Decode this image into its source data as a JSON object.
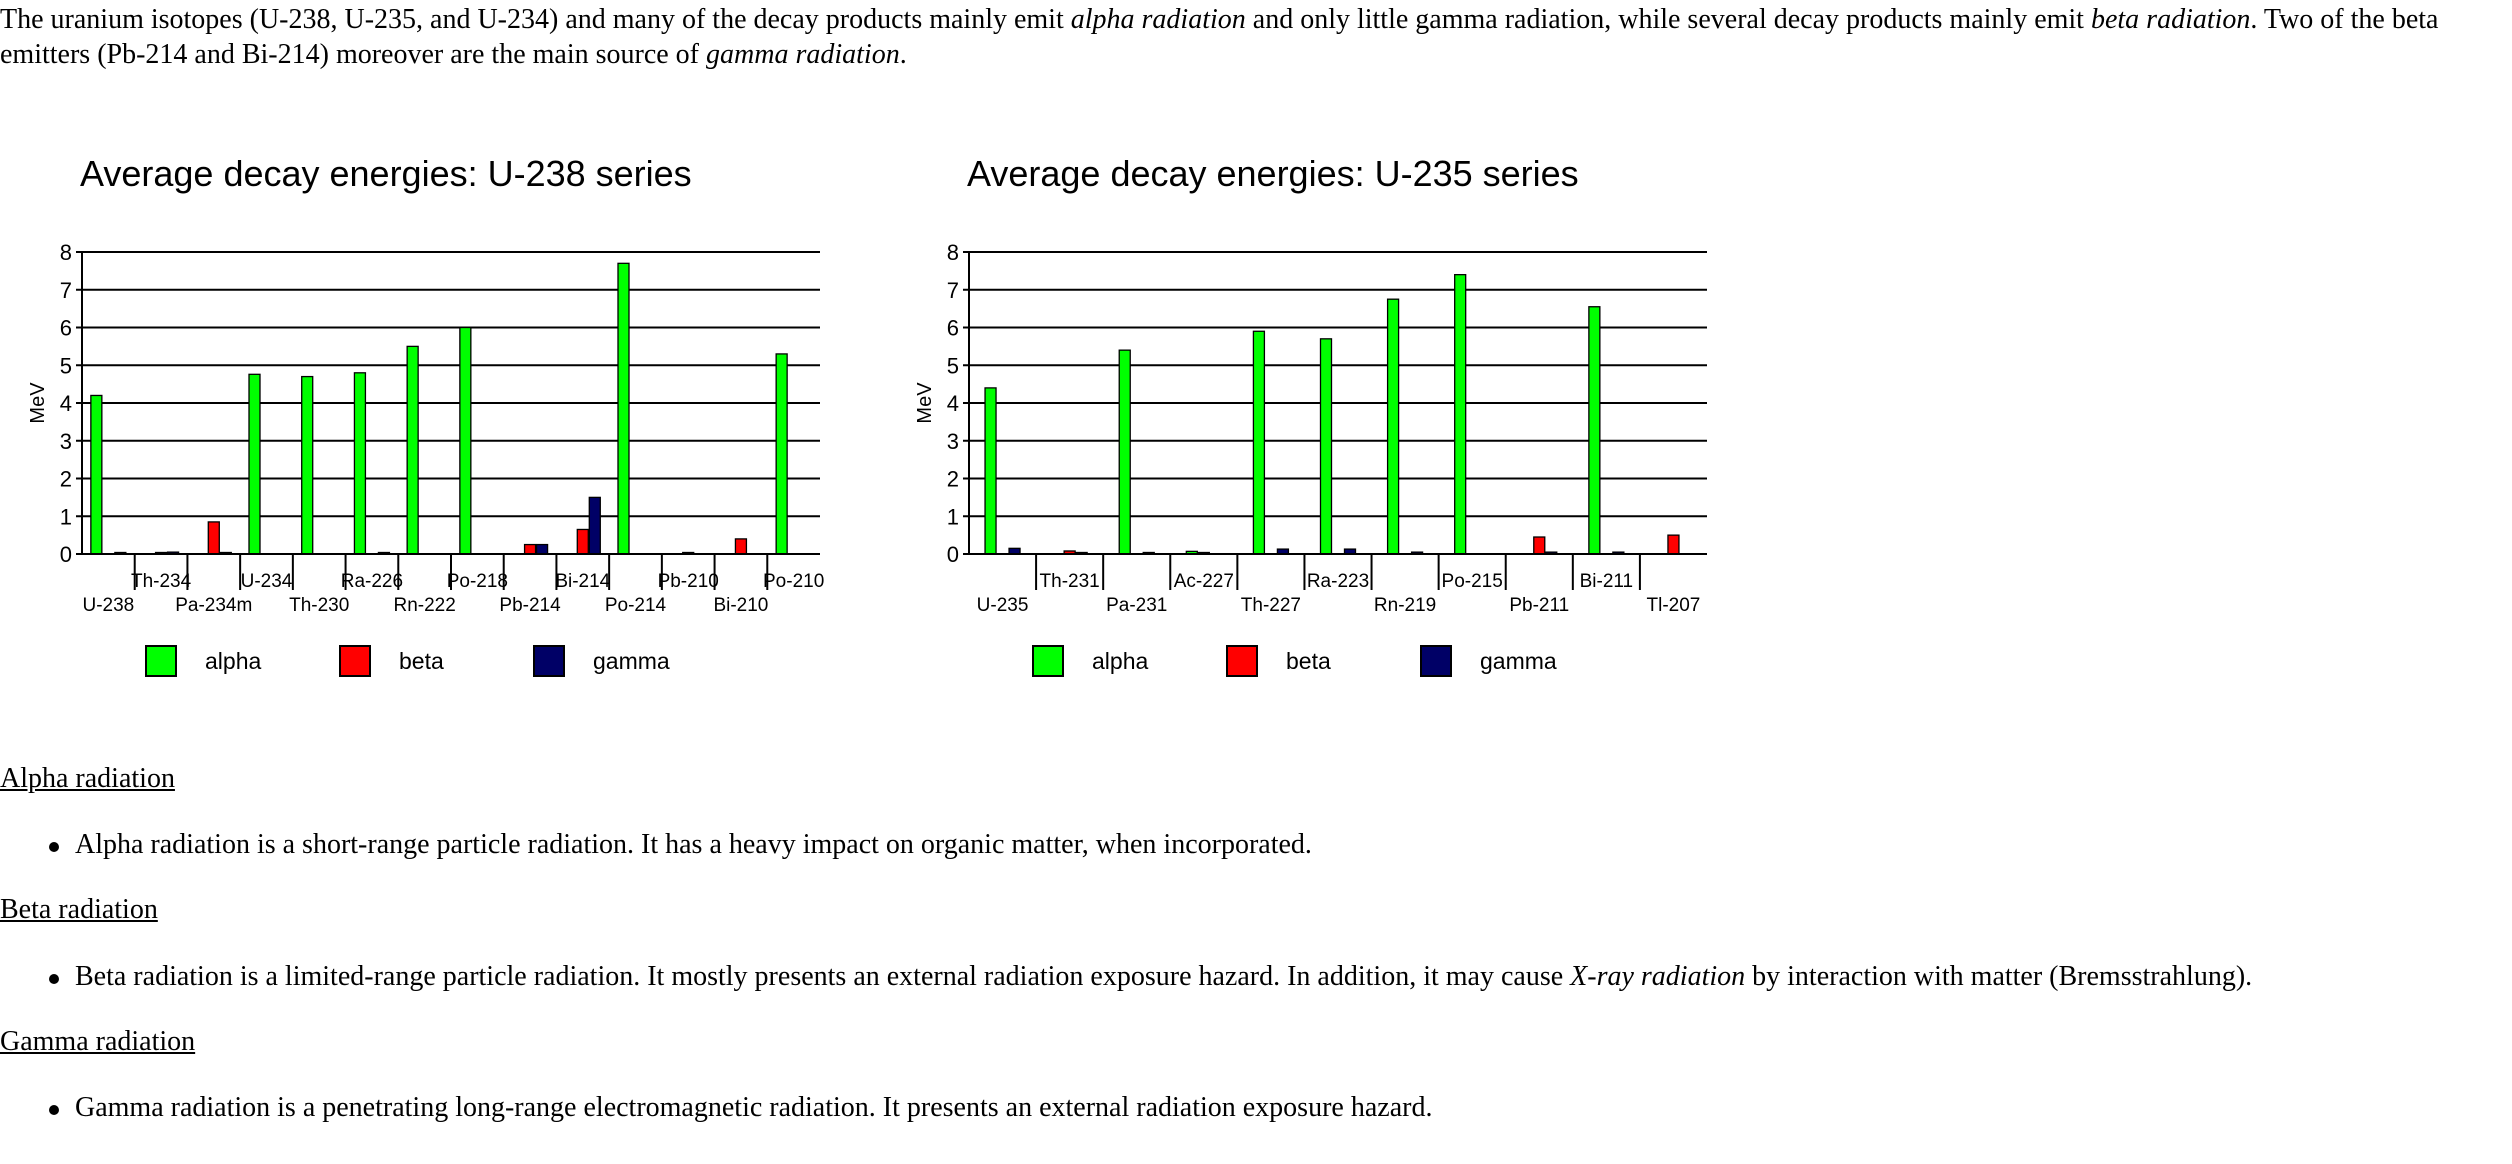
{
  "intro": {
    "t1": "The uranium isotopes (U-238, U-235, and U-234) and many of the decay products mainly emit ",
    "e1": "alpha radiation",
    "t2": " and only little gamma radiation, while several decay products mainly emit ",
    "e2": "beta radiation",
    "t3": ". Two of the beta emitters (Pb-214 and Bi-214) moreover are the main source of ",
    "e3": "gamma radiation",
    "t4": "."
  },
  "colors": {
    "alpha": "#00ff00",
    "beta": "#ff0000",
    "gamma": "#000066"
  },
  "chart_data": [
    {
      "type": "bar",
      "title": "Average decay energies:  U-238 series",
      "ylabel": "MeV",
      "ylim": [
        0,
        8
      ],
      "yticks": [
        "0",
        "1",
        "2",
        "3",
        "4",
        "5",
        "6",
        "7",
        "8"
      ],
      "grid": true,
      "legend_position": "bottom",
      "categories": [
        "U-238",
        "Th-234",
        "Pa-234m",
        "U-234",
        "Th-230",
        "Ra-226",
        "Rn-222",
        "Po-218",
        "Pb-214",
        "Bi-214",
        "Po-214",
        "Pb-210",
        "Bi-210",
        "Po-210"
      ],
      "series": [
        {
          "name": "alpha",
          "values": [
            4.2,
            0,
            0,
            4.76,
            4.7,
            4.8,
            5.5,
            6.0,
            0,
            0,
            7.7,
            0,
            0,
            5.3
          ]
        },
        {
          "name": "beta",
          "values": [
            0,
            0.01,
            0.85,
            0,
            0,
            0,
            0,
            0,
            0.25,
            0.65,
            0,
            0.01,
            0.4,
            0
          ]
        },
        {
          "name": "gamma",
          "values": [
            0.01,
            0.05,
            0.01,
            0,
            0,
            0.01,
            0,
            0,
            0.25,
            1.5,
            0,
            0,
            0,
            0
          ]
        }
      ]
    },
    {
      "type": "bar",
      "title": "Average decay energies:  U-235 series",
      "ylabel": "MeV",
      "ylim": [
        0,
        8
      ],
      "yticks": [
        "0",
        "1",
        "2",
        "3",
        "4",
        "5",
        "6",
        "7",
        "8"
      ],
      "grid": true,
      "legend_position": "bottom",
      "categories": [
        "U-235",
        "Th-231",
        "Pa-231",
        "Ac-227",
        "Th-227",
        "Ra-223",
        "Rn-219",
        "Po-215",
        "Pb-211",
        "Bi-211",
        "Tl-207"
      ],
      "series": [
        {
          "name": "alpha",
          "values": [
            4.4,
            0,
            5.4,
            0.07,
            5.9,
            5.7,
            6.75,
            7.4,
            0,
            6.55,
            0
          ]
        },
        {
          "name": "beta",
          "values": [
            0,
            0.08,
            0,
            0.01,
            0,
            0,
            0,
            0,
            0.45,
            0,
            0.5
          ]
        },
        {
          "name": "gamma",
          "values": [
            0.15,
            0.03,
            0.04,
            0,
            0.13,
            0.13,
            0.05,
            0,
            0.05,
            0.05,
            0
          ]
        }
      ]
    }
  ],
  "sections": [
    {
      "heading": "Alpha radiation",
      "text": "Alpha radiation is a short-range particle radiation. It has a heavy impact on organic matter, when incorporated."
    },
    {
      "heading": "Beta radiation",
      "t1": "Beta radiation is a limited-range particle radiation. It mostly presents an external radiation exposure hazard. In addition, it may cause ",
      "em": "X-ray radiation",
      "t2": " by interaction with matter (Bremsstrahlung)."
    },
    {
      "heading": "Gamma radiation",
      "text": "Gamma radiation is a penetrating long-range electromagnetic radiation. It presents an external radiation exposure hazard."
    }
  ]
}
